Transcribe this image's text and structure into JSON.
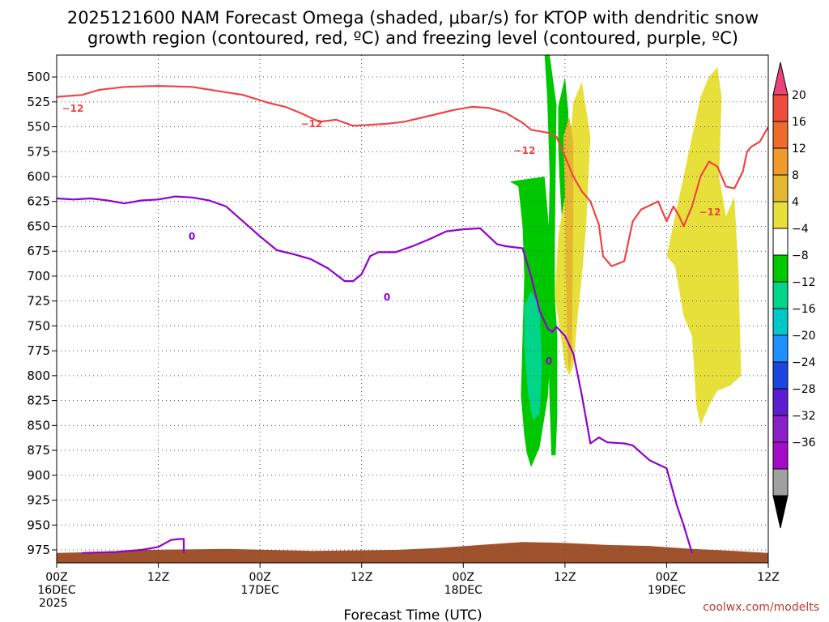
{
  "chart_data": {
    "type": "contour",
    "title_line1": "2025121600 NAM Forecast Omega (shaded, μbar/s) for KTOP with dendritic snow",
    "title_line2": "growth region (contoured, red, ºC) and freezing level (contoured, purple, ºC)",
    "xlabel": "Forecast Time (UTC)",
    "credit": "coolwx.com/modelts",
    "x_range_hours": [
      0,
      84
    ],
    "y_range_hpa": [
      478,
      988
    ],
    "y_ticks": [
      500,
      525,
      550,
      575,
      600,
      625,
      650,
      675,
      700,
      725,
      750,
      775,
      800,
      825,
      850,
      875,
      900,
      925,
      950,
      975
    ],
    "x_ticks": [
      {
        "hour": 0,
        "lines": [
          "00Z",
          "16DEC",
          "2025"
        ]
      },
      {
        "hour": 12,
        "lines": [
          "12Z"
        ]
      },
      {
        "hour": 24,
        "lines": [
          "00Z",
          "17DEC"
        ]
      },
      {
        "hour": 36,
        "lines": [
          "12Z"
        ]
      },
      {
        "hour": 48,
        "lines": [
          "00Z",
          "18DEC"
        ]
      },
      {
        "hour": 60,
        "lines": [
          "12Z"
        ]
      },
      {
        "hour": 72,
        "lines": [
          "00Z",
          "19DEC"
        ]
      },
      {
        "hour": 84,
        "lines": [
          "12Z"
        ]
      }
    ],
    "colorbar": {
      "labels": [
        "20",
        "16",
        "12",
        "8",
        "4",
        "−4",
        "−8",
        "−12",
        "−16",
        "−20",
        "−24",
        "−28",
        "−32",
        "−36"
      ],
      "colors": [
        "#e8447a",
        "#ef4b3c",
        "#ef6b2a",
        "#f09a2a",
        "#e5b730",
        "#e8e03a",
        "#ffffff",
        "#00c800",
        "#00d68a",
        "#00c8c8",
        "#1e8fff",
        "#1c46e0",
        "#5a1ed0",
        "#8a1ec8",
        "#a50ac8",
        "#a0a0a0",
        "#000000"
      ]
    },
    "contour_labels": {
      "red": "−12",
      "purple": "0"
    },
    "series": [
      {
        "name": "dendritic growth -12C (red)",
        "color": "#ef4444",
        "points": [
          [
            0,
            520
          ],
          [
            3,
            518
          ],
          [
            5,
            513
          ],
          [
            8,
            510
          ],
          [
            12,
            509
          ],
          [
            16,
            510
          ],
          [
            19,
            514
          ],
          [
            22,
            518
          ],
          [
            25,
            526
          ],
          [
            27,
            530
          ],
          [
            29,
            537
          ],
          [
            31,
            545
          ],
          [
            33,
            543
          ],
          [
            35,
            549
          ],
          [
            37,
            548
          ],
          [
            39,
            547
          ],
          [
            41,
            545
          ],
          [
            43,
            541
          ],
          [
            45,
            537
          ],
          [
            47,
            533
          ],
          [
            49,
            530
          ],
          [
            51,
            531
          ],
          [
            53,
            536
          ],
          [
            55,
            546
          ],
          [
            56,
            553
          ],
          [
            58,
            556
          ],
          [
            59,
            560
          ],
          [
            60,
            580
          ],
          [
            61,
            600
          ],
          [
            62,
            615
          ],
          [
            63,
            625
          ],
          [
            64,
            648
          ],
          [
            64.5,
            680
          ],
          [
            65.5,
            690
          ],
          [
            67,
            685
          ],
          [
            68,
            645
          ],
          [
            69,
            633
          ],
          [
            71,
            625
          ],
          [
            72,
            645
          ],
          [
            72.8,
            630
          ],
          [
            73.5,
            640
          ],
          [
            74,
            650
          ],
          [
            75,
            630
          ],
          [
            76,
            600
          ],
          [
            77,
            585
          ],
          [
            78,
            590
          ],
          [
            79,
            610
          ],
          [
            80,
            612
          ],
          [
            81,
            595
          ],
          [
            81.5,
            575
          ],
          [
            82,
            570
          ],
          [
            83,
            565
          ],
          [
            84,
            550
          ]
        ]
      },
      {
        "name": "freezing level 0C (purple)",
        "color": "#9000d0",
        "points": [
          [
            0,
            622
          ],
          [
            2,
            623
          ],
          [
            4,
            622
          ],
          [
            6,
            624
          ],
          [
            8,
            627
          ],
          [
            10,
            624
          ],
          [
            12,
            623
          ],
          [
            14,
            620
          ],
          [
            16,
            621
          ],
          [
            18,
            624
          ],
          [
            20,
            630
          ],
          [
            22,
            645
          ],
          [
            24,
            660
          ],
          [
            26,
            674
          ],
          [
            28,
            678
          ],
          [
            30,
            683
          ],
          [
            32,
            692
          ],
          [
            34,
            705
          ],
          [
            35,
            705
          ],
          [
            36,
            698
          ],
          [
            37,
            680
          ],
          [
            38,
            676
          ],
          [
            40,
            676
          ],
          [
            42,
            670
          ],
          [
            44,
            663
          ],
          [
            46,
            655
          ],
          [
            48,
            653
          ],
          [
            50,
            652
          ],
          [
            51,
            660
          ],
          [
            52,
            668
          ],
          [
            53,
            670
          ],
          [
            55,
            672
          ],
          [
            56,
            700
          ],
          [
            57,
            735
          ],
          [
            58,
            753
          ],
          [
            58.5,
            756
          ],
          [
            59,
            751
          ],
          [
            60,
            760
          ],
          [
            61,
            778
          ],
          [
            62,
            820
          ],
          [
            63,
            868
          ],
          [
            64,
            862
          ],
          [
            65,
            867
          ],
          [
            67,
            868
          ],
          [
            68,
            870
          ],
          [
            70,
            885
          ],
          [
            72,
            893
          ],
          [
            73.2,
            930
          ],
          [
            74,
            950
          ],
          [
            75,
            978
          ]
        ]
      },
      {
        "name": "freezing level 0C near surface (purple)",
        "color": "#9000d0",
        "points": [
          [
            3,
            978
          ],
          [
            7,
            977
          ],
          [
            10,
            975
          ],
          [
            12,
            972
          ],
          [
            13.5,
            965
          ],
          [
            14.5,
            964
          ],
          [
            15,
            964
          ],
          [
            15,
            978
          ]
        ]
      }
    ],
    "shaded_regions": [
      {
        "name": "green band A",
        "color": "#00c800",
        "points": [
          [
            53.5,
            605
          ],
          [
            54.5,
            610
          ],
          [
            55,
            650
          ],
          [
            55.2,
            700
          ],
          [
            55,
            760
          ],
          [
            54.8,
            820
          ],
          [
            55.2,
            860
          ],
          [
            55.5,
            878
          ],
          [
            56,
            892
          ],
          [
            57,
            872
          ],
          [
            58,
            820
          ],
          [
            58.5,
            740
          ],
          [
            58.5,
            690
          ],
          [
            57.6,
            600
          ]
        ]
      },
      {
        "name": "green band B",
        "color": "#00c800",
        "points": [
          [
            57.6,
            478
          ],
          [
            58.2,
            478
          ],
          [
            59,
            528
          ],
          [
            58.9,
            600
          ],
          [
            58.8,
            668
          ],
          [
            58.8,
            720
          ],
          [
            59.1,
            760
          ],
          [
            59.1,
            840
          ],
          [
            58.9,
            880
          ],
          [
            58.4,
            880
          ],
          [
            58.2,
            830
          ],
          [
            58.0,
            760
          ],
          [
            58.0,
            690
          ],
          [
            58.2,
            600
          ],
          [
            57.9,
            520
          ]
        ]
      },
      {
        "name": "green band C",
        "color": "#00c800",
        "points": [
          [
            59.2,
            530
          ],
          [
            60,
            500
          ],
          [
            60.4,
            535
          ],
          [
            60.3,
            600
          ],
          [
            60.1,
            640
          ],
          [
            59.7,
            650
          ],
          [
            59.4,
            610
          ],
          [
            59.2,
            570
          ]
        ]
      },
      {
        "name": "teal core",
        "color": "#00d68a",
        "points": [
          [
            55.2,
            730
          ],
          [
            56,
            715
          ],
          [
            57,
            730
          ],
          [
            57.3,
            790
          ],
          [
            57,
            838
          ],
          [
            56.2,
            845
          ],
          [
            55.6,
            815
          ],
          [
            55.2,
            770
          ]
        ]
      },
      {
        "name": "yellow area A",
        "color": "#e8e03a",
        "points": [
          [
            58.8,
            720
          ],
          [
            59.2,
            660
          ],
          [
            60,
            620
          ],
          [
            61,
            525
          ],
          [
            62,
            505
          ],
          [
            63,
            560
          ],
          [
            62.5,
            650
          ],
          [
            62,
            700
          ],
          [
            61.5,
            740
          ],
          [
            61,
            790
          ],
          [
            60.5,
            800
          ],
          [
            60,
            790
          ],
          [
            59.5,
            760
          ]
        ]
      },
      {
        "name": "yellow area B",
        "color": "#e8e03a",
        "points": [
          [
            72,
            680
          ],
          [
            73,
            640
          ],
          [
            74,
            600
          ],
          [
            75,
            560
          ],
          [
            76,
            520
          ],
          [
            77,
            500
          ],
          [
            78,
            490
          ],
          [
            78.5,
            520
          ],
          [
            78.2,
            600
          ],
          [
            79,
            640
          ],
          [
            80,
            620
          ],
          [
            80.5,
            700
          ],
          [
            80.8,
            800
          ],
          [
            79.5,
            810
          ],
          [
            78,
            815
          ],
          [
            77,
            830
          ],
          [
            76,
            850
          ],
          [
            75.5,
            830
          ],
          [
            75,
            760
          ],
          [
            74,
            740
          ],
          [
            73,
            690
          ]
        ]
      },
      {
        "name": "orange streak",
        "color": "#e5b730",
        "points": [
          [
            59.8,
            560
          ],
          [
            60.5,
            540
          ],
          [
            61,
            565
          ],
          [
            61,
            640
          ],
          [
            60.8,
            780
          ],
          [
            60.5,
            795
          ],
          [
            60.3,
            780
          ],
          [
            60.1,
            700
          ],
          [
            60,
            620
          ]
        ]
      },
      {
        "name": "terrain",
        "color": "#a0522d",
        "points": [
          [
            0,
            988
          ],
          [
            0,
            978
          ],
          [
            5,
            977
          ],
          [
            10,
            975
          ],
          [
            20,
            974
          ],
          [
            30,
            976
          ],
          [
            40,
            975
          ],
          [
            45,
            973
          ],
          [
            50,
            970
          ],
          [
            55,
            967
          ],
          [
            60,
            968
          ],
          [
            65,
            970
          ],
          [
            70,
            971
          ],
          [
            75,
            974
          ],
          [
            80,
            976
          ],
          [
            84,
            978
          ],
          [
            84,
            988
          ]
        ]
      }
    ]
  }
}
